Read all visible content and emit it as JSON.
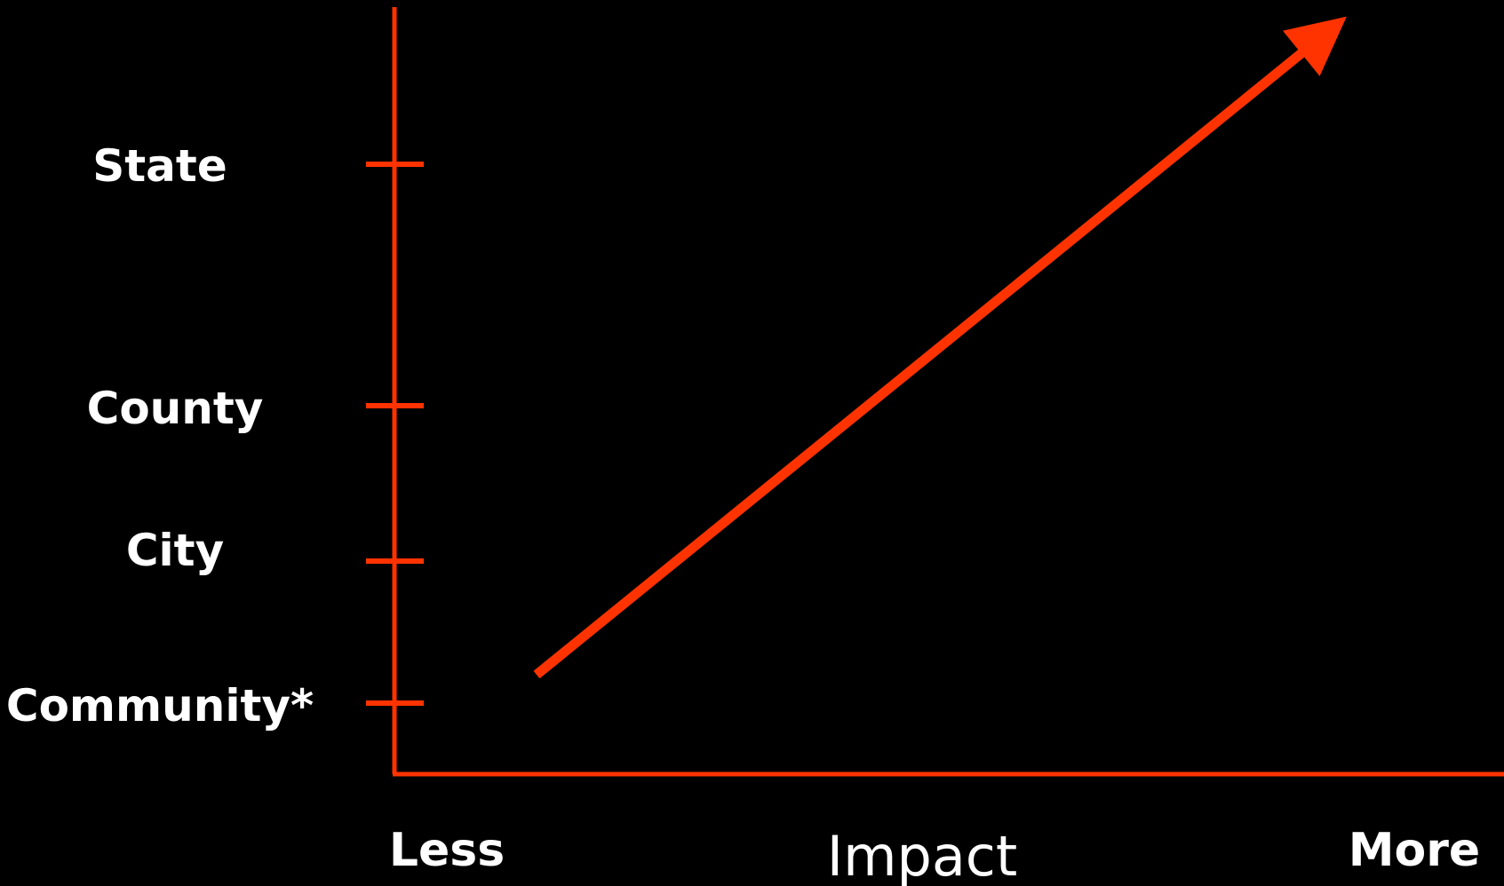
{
  "colors": {
    "background": "#000000",
    "axis": "#ff3300",
    "text": "#ffffff"
  },
  "y_axis": {
    "levels": [
      {
        "label": "State"
      },
      {
        "label": "County"
      },
      {
        "label": "City"
      },
      {
        "label": "Community*"
      }
    ]
  },
  "x_axis": {
    "title": "Impact",
    "start_label": "Less",
    "end_label": "More"
  },
  "trend": {
    "direction": "increasing",
    "arrowhead": "arrow-up-right-icon"
  }
}
